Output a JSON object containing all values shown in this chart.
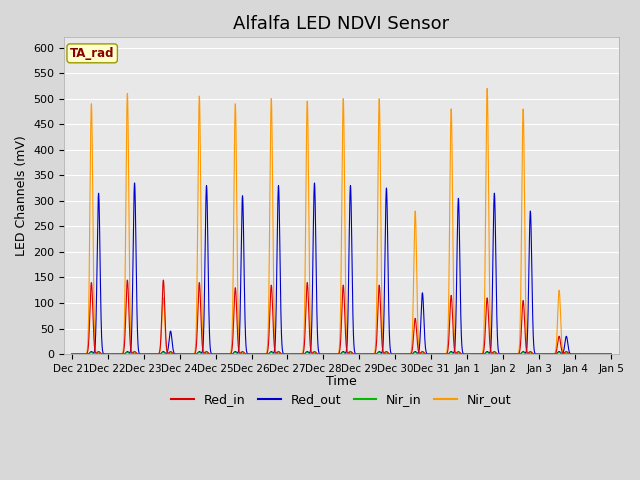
{
  "title": "Alfalfa LED NDVI Sensor",
  "ylabel": "LED Channels (mV)",
  "xlabel": "Time",
  "ylim": [
    0,
    620
  ],
  "yticks": [
    0,
    50,
    100,
    150,
    200,
    250,
    300,
    350,
    400,
    450,
    500,
    550,
    600
  ],
  "fig_bg_color": "#d8d8d8",
  "plot_bg_color": "#e8e8e8",
  "grid_color": "#ffffff",
  "legend_items": [
    "Red_in",
    "Red_out",
    "Nir_in",
    "Nir_out"
  ],
  "legend_colors": [
    "#dd0000",
    "#0000cc",
    "#00bb00",
    "#ff9900"
  ],
  "ta_rad_label": "TA_rad",
  "ta_rad_bg": "#ffffcc",
  "ta_rad_border": "#999900",
  "ta_rad_text_color": "#880000",
  "date_labels": [
    "Dec 21",
    "Dec 22",
    "Dec 23",
    "Dec 24",
    "Dec 25",
    "Dec 26",
    "Dec 27",
    "Dec 28",
    "Dec 29",
    "Dec 30",
    "Dec 31",
    "Jan 1",
    "Jan 2",
    "Jan 3",
    "Jan 4",
    "Jan 5"
  ],
  "spike_centers": [
    0.55,
    0.75,
    1.55,
    1.75,
    2.55,
    2.75,
    3.55,
    3.75,
    4.55,
    4.75,
    5.55,
    5.75,
    6.55,
    6.75,
    7.55,
    7.75,
    8.55,
    8.75,
    9.55,
    9.75,
    10.55,
    10.75,
    11.55,
    11.75,
    12.55,
    12.75,
    13.55,
    13.75
  ],
  "red_in_peaks": [
    140,
    5,
    145,
    5,
    145,
    5,
    140,
    5,
    130,
    5,
    135,
    5,
    140,
    5,
    135,
    5,
    135,
    5,
    70,
    5,
    115,
    5,
    110,
    5,
    105,
    5,
    35,
    5
  ],
  "red_out_peaks": [
    5,
    315,
    5,
    335,
    5,
    45,
    5,
    330,
    5,
    310,
    5,
    330,
    5,
    335,
    5,
    330,
    5,
    325,
    5,
    120,
    5,
    305,
    5,
    315,
    5,
    280,
    5,
    35
  ],
  "nir_in_peaks": [
    3,
    2,
    3,
    2,
    3,
    2,
    3,
    2,
    3,
    2,
    3,
    2,
    3,
    2,
    3,
    2,
    3,
    2,
    3,
    2,
    3,
    2,
    3,
    2,
    3,
    2,
    3,
    2
  ],
  "nir_out_peaks": [
    490,
    5,
    510,
    5,
    110,
    5,
    505,
    5,
    490,
    5,
    500,
    5,
    495,
    5,
    500,
    5,
    500,
    5,
    280,
    5,
    480,
    5,
    520,
    5,
    480,
    5,
    125,
    5
  ],
  "spike_sigma": 0.04,
  "total_days": 15
}
